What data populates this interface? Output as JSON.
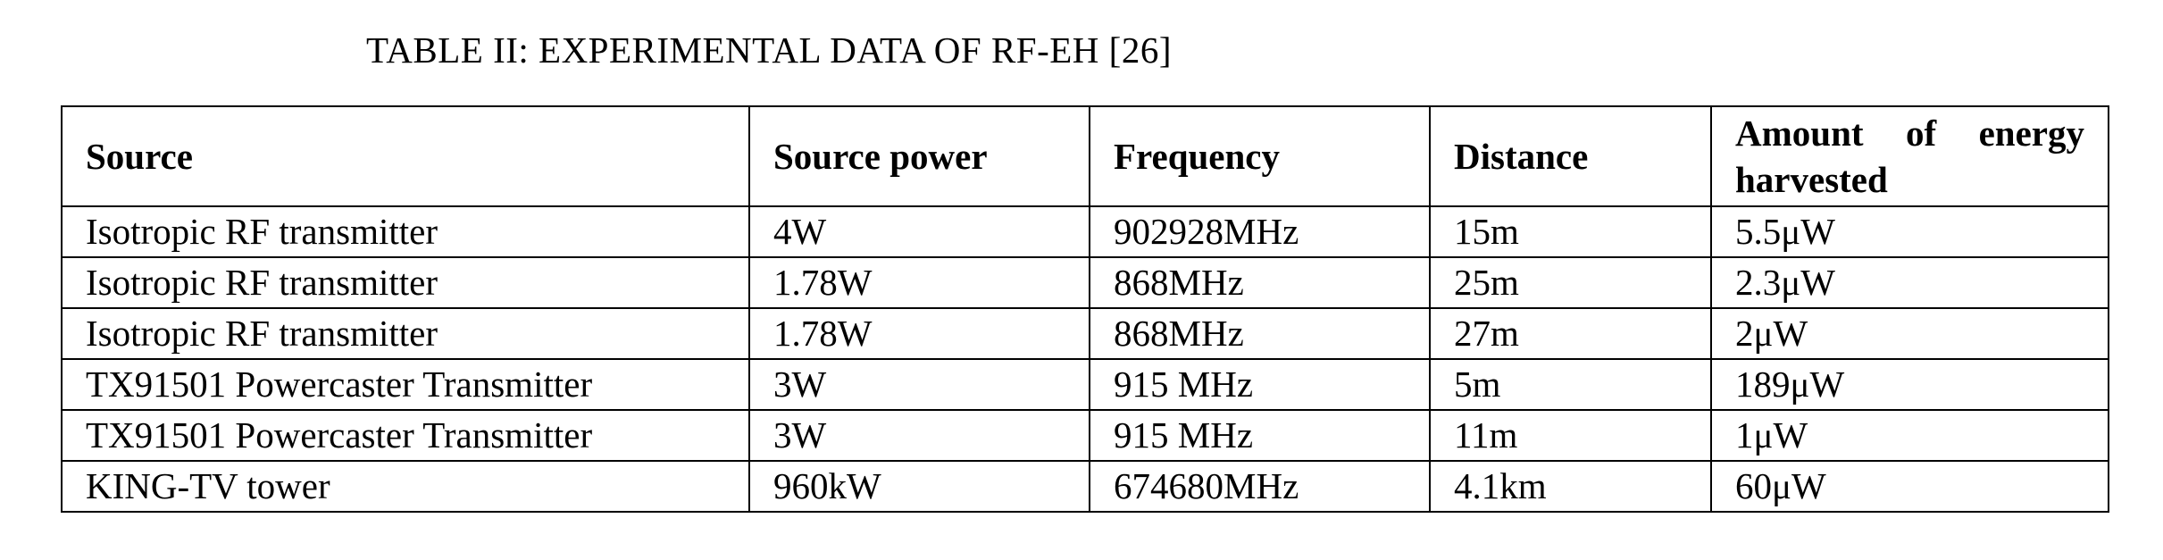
{
  "caption": "TABLE II: EXPERIMENTAL DATA OF RF-EH [26]",
  "table": {
    "headers": [
      "Source",
      "Source power",
      "Frequency",
      "Distance",
      "Amount of energy harvested"
    ],
    "rows": [
      [
        "Isotropic RF transmitter",
        "4W",
        "902928MHz",
        "15m",
        "5.5μW"
      ],
      [
        "Isotropic RF transmitter",
        "1.78W",
        "868MHz",
        "25m",
        "2.3μW"
      ],
      [
        "Isotropic RF transmitter",
        "1.78W",
        "868MHz",
        "27m",
        "2μW"
      ],
      [
        "TX91501 Powercaster Transmitter",
        "3W",
        "915 MHz",
        "5m",
        "189μW"
      ],
      [
        "TX91501 Powercaster Transmitter",
        "3W",
        "915 MHz",
        "11m",
        "1μW"
      ],
      [
        "KING-TV tower",
        "960kW",
        "674680MHz",
        "4.1km",
        "60μW"
      ]
    ]
  }
}
